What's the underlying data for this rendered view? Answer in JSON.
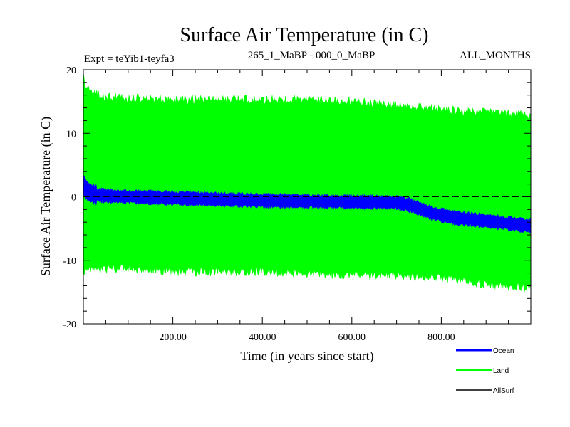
{
  "chart_data": {
    "type": "area",
    "title": "Surface Air Temperature (in C)",
    "subtitle_left": "Expt = teYib1-teyfa3",
    "subtitle_center": "265_1_MaBP - 000_0_MaBP",
    "subtitle_right": "ALL_MONTHS",
    "xlabel": "Time (in years since start)",
    "ylabel": "Surface Air Temperature (in C)",
    "xlim": [
      0,
      1000
    ],
    "ylim": [
      -20,
      20
    ],
    "x_ticks": [
      200,
      400,
      600,
      800
    ],
    "x_tick_labels": [
      "200.00",
      "400.00",
      "600.00",
      "800.00"
    ],
    "y_ticks": [
      -20,
      -10,
      0,
      10,
      20
    ],
    "y_tick_labels": [
      "-20",
      "-10",
      "0",
      "10",
      "20"
    ],
    "zero_line": "dashed",
    "series": [
      {
        "name": "Land",
        "color": "#00ff00",
        "x": [
          0,
          5,
          20,
          50,
          100,
          200,
          300,
          400,
          500,
          600,
          700,
          800,
          900,
          1000
        ],
        "upper": [
          19.5,
          18.0,
          17.0,
          16.5,
          16.2,
          16.0,
          16.0,
          16.0,
          16.0,
          15.8,
          15.0,
          14.5,
          14.0,
          13.5
        ],
        "lower": [
          -12.5,
          -12.0,
          -12.0,
          -12.0,
          -12.0,
          -12.5,
          -12.5,
          -12.5,
          -12.8,
          -13.0,
          -13.0,
          -13.5,
          -14.5,
          -15.0
        ]
      },
      {
        "name": "Ocean",
        "color": "#0000ff",
        "x": [
          0,
          5,
          15,
          30,
          60,
          100,
          200,
          300,
          400,
          500,
          600,
          700,
          730,
          780,
          830,
          900,
          950,
          1000
        ],
        "center": [
          2.0,
          1.2,
          0.6,
          0.3,
          0.1,
          0.0,
          -0.2,
          -0.4,
          -0.6,
          -0.7,
          -0.8,
          -0.9,
          -1.3,
          -2.6,
          -3.3,
          -3.8,
          -4.2,
          -4.6
        ]
      },
      {
        "name": "AllSurf",
        "color": "#000000",
        "x": [],
        "values": []
      }
    ],
    "legend": {
      "placement": "bottom-right",
      "items": [
        {
          "label": "Ocean",
          "color": "#0000ff"
        },
        {
          "label": "Land",
          "color": "#00ff00"
        },
        {
          "label": "AllSurf",
          "color": "#000000"
        }
      ]
    }
  }
}
